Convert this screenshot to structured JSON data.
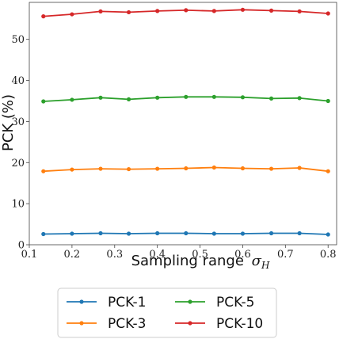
{
  "chart_data": {
    "type": "line",
    "title": "",
    "xlabel": "Sampling range",
    "xlabel_symbol": "σ",
    "xlabel_subscript": "H",
    "ylabel": "PCK (%)",
    "xlim": [
      0.1,
      0.82
    ],
    "ylim": [
      0,
      59
    ],
    "xticks": [
      "0.1",
      "0.2",
      "0.3",
      "0.4",
      "0.5",
      "0.6",
      "0.7",
      "0.8"
    ],
    "yticks": [
      "0",
      "10",
      "20",
      "30",
      "40",
      "50"
    ],
    "grid": false,
    "legend_position": "bottom",
    "x": [
      0.133,
      0.2,
      0.267,
      0.333,
      0.4,
      0.467,
      0.533,
      0.6,
      0.667,
      0.733,
      0.8
    ],
    "series": [
      {
        "name": "PCK-1",
        "color": "#1f77b4",
        "values": [
          2.6,
          2.7,
          2.8,
          2.7,
          2.8,
          2.8,
          2.7,
          2.7,
          2.8,
          2.8,
          2.5
        ]
      },
      {
        "name": "PCK-3",
        "color": "#ff7f0e",
        "values": [
          17.9,
          18.3,
          18.5,
          18.4,
          18.5,
          18.6,
          18.8,
          18.6,
          18.5,
          18.7,
          17.9
        ]
      },
      {
        "name": "PCK-5",
        "color": "#2ca02c",
        "values": [
          34.9,
          35.3,
          35.8,
          35.4,
          35.8,
          36.0,
          36.0,
          35.9,
          35.6,
          35.7,
          35.0
        ]
      },
      {
        "name": "PCK-10",
        "color": "#d62728",
        "values": [
          55.6,
          56.1,
          56.8,
          56.6,
          56.9,
          57.1,
          56.9,
          57.2,
          57.0,
          56.8,
          56.3
        ]
      }
    ]
  }
}
